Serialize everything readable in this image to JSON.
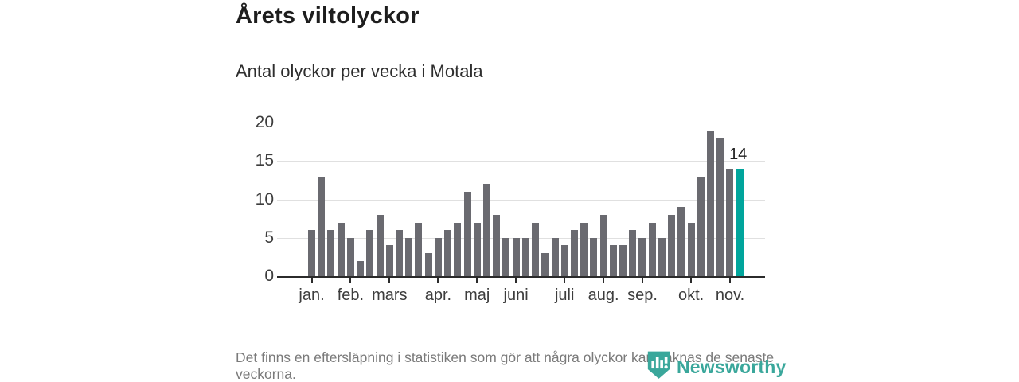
{
  "header": {
    "title": "Årets viltolyckor",
    "subtitle": "Antal olyckor per vecka i Motala"
  },
  "chart_data": {
    "type": "bar",
    "title": "Årets viltolyckor",
    "subtitle": "Antal olyckor per vecka i Motala",
    "x_unit": "vecka",
    "categories_note": "weeks 1-45 of the year",
    "values": [
      6,
      13,
      6,
      7,
      5,
      2,
      6,
      8,
      4,
      6,
      5,
      7,
      3,
      5,
      6,
      7,
      11,
      7,
      12,
      8,
      5,
      5,
      5,
      7,
      3,
      5,
      4,
      6,
      7,
      5,
      8,
      4,
      4,
      6,
      5,
      7,
      5,
      8,
      9,
      7,
      13,
      19,
      18,
      14,
      14
    ],
    "highlight_index": 44,
    "highlight_label": "14",
    "y_ticks": [
      0,
      5,
      10,
      15,
      20
    ],
    "ylim": [
      0,
      20
    ],
    "grid": true,
    "month_ticks": [
      {
        "label": "jan.",
        "week": 1
      },
      {
        "label": "feb.",
        "week": 5
      },
      {
        "label": "mars",
        "week": 9
      },
      {
        "label": "apr.",
        "week": 14
      },
      {
        "label": "maj",
        "week": 18
      },
      {
        "label": "juni",
        "week": 22
      },
      {
        "label": "juli",
        "week": 27
      },
      {
        "label": "aug.",
        "week": 31
      },
      {
        "label": "sep.",
        "week": 35
      },
      {
        "label": "okt.",
        "week": 40
      },
      {
        "label": "nov.",
        "week": 44
      }
    ],
    "bar_color": "#6a6a70",
    "highlight_color": "#00a59c"
  },
  "footer": {
    "note": "Det finns en eftersläpning i statistiken som gör att några olyckor kan saknas de senaste veckorna.",
    "brand": "Newsworthy",
    "brand_color": "#3aa79b"
  }
}
